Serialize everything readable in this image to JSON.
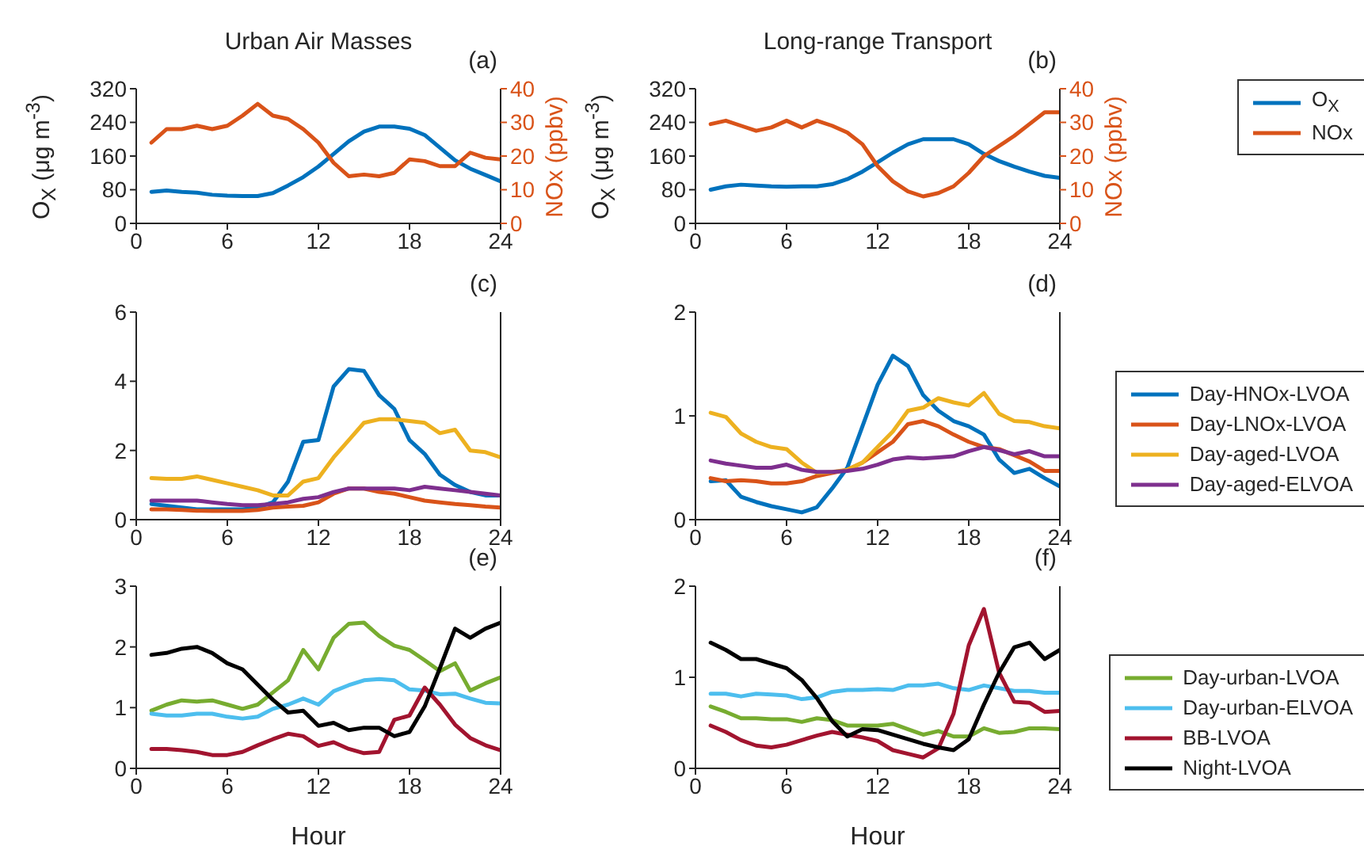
{
  "chart_data": [
    {
      "type": "line",
      "title": "Urban Air Masses",
      "annotations": [
        "(a)"
      ],
      "ylabel": "O$_{X}$ (μg m$^{-3}$)",
      "y2label": "NOx (ppbv)",
      "x": [
        1,
        2,
        3,
        4,
        5,
        6,
        7,
        8,
        9,
        10,
        11,
        12,
        13,
        14,
        15,
        16,
        17,
        18,
        19,
        20,
        21,
        22,
        23,
        24
      ],
      "xlim": [
        0,
        24
      ],
      "xticks": [
        0,
        6,
        12,
        18,
        24
      ],
      "ylim": [
        0,
        320
      ],
      "yticks": [
        0,
        80,
        160,
        240,
        320
      ],
      "y2lim": [
        0,
        40
      ],
      "y2ticks": [
        0,
        10,
        20,
        30,
        40
      ],
      "series": [
        {
          "color": "#0072bd",
          "values": [
            75,
            78,
            75,
            73,
            68,
            66,
            65,
            65,
            72,
            90,
            110,
            135,
            165,
            195,
            218,
            230,
            230,
            225,
            210,
            180,
            150,
            130,
            115,
            100
          ]
        },
        {
          "color": "#d95319",
          "axis": "y2",
          "values": [
            24,
            28,
            28,
            29,
            28,
            29,
            32,
            35.5,
            32,
            31,
            28,
            24,
            18,
            14,
            14.5,
            14,
            15,
            19,
            18.5,
            17,
            17,
            21,
            19.5,
            19
          ]
        }
      ]
    },
    {
      "type": "line",
      "title": "Long-range Transport",
      "annotations": [
        "(b)"
      ],
      "ylabel": "O$_{X}$ (μg m$^{-3}$)",
      "y2label": "NOx (ppbv)",
      "legend": "right",
      "x": [
        1,
        2,
        3,
        4,
        5,
        6,
        7,
        8,
        9,
        10,
        11,
        12,
        13,
        14,
        15,
        16,
        17,
        18,
        19,
        20,
        21,
        22,
        23,
        24
      ],
      "xlim": [
        0,
        24
      ],
      "xticks": [
        0,
        6,
        12,
        18,
        24
      ],
      "ylim": [
        0,
        320
      ],
      "yticks": [
        0,
        80,
        160,
        240,
        320
      ],
      "y2lim": [
        0,
        40
      ],
      "y2ticks": [
        0,
        10,
        20,
        30,
        40
      ],
      "series": [
        {
          "name": "O$_{X}$",
          "color": "#0072bd",
          "values": [
            80,
            88,
            92,
            90,
            88,
            87,
            88,
            88,
            93,
            105,
            123,
            145,
            168,
            188,
            200,
            200,
            200,
            188,
            165,
            148,
            135,
            123,
            113,
            108
          ]
        },
        {
          "name": "NOx",
          "color": "#d95319",
          "axis": "y2",
          "values": [
            29.5,
            30.5,
            29,
            27.5,
            28.5,
            30.5,
            28.5,
            30.5,
            29,
            27,
            23.5,
            17,
            12.5,
            9.5,
            8,
            9,
            11,
            15,
            20,
            23,
            26,
            29.5,
            33,
            33
          ]
        }
      ]
    },
    {
      "type": "line",
      "annotations": [
        "(c)"
      ],
      "x": [
        1,
        2,
        3,
        4,
        5,
        6,
        7,
        8,
        9,
        10,
        11,
        12,
        13,
        14,
        15,
        16,
        17,
        18,
        19,
        20,
        21,
        22,
        23,
        24
      ],
      "xlim": [
        0,
        24
      ],
      "xticks": [
        0,
        6,
        12,
        18,
        24
      ],
      "ylim": [
        0,
        6
      ],
      "yticks": [
        0,
        2,
        4,
        6
      ],
      "series": [
        {
          "color": "#0072bd",
          "values": [
            0.45,
            0.4,
            0.35,
            0.3,
            0.3,
            0.3,
            0.3,
            0.35,
            0.5,
            1.1,
            2.25,
            2.3,
            3.85,
            4.35,
            4.3,
            3.6,
            3.2,
            2.3,
            1.9,
            1.3,
            1.0,
            0.8,
            0.7,
            0.7
          ]
        },
        {
          "color": "#d95319",
          "values": [
            0.3,
            0.3,
            0.28,
            0.26,
            0.25,
            0.25,
            0.25,
            0.28,
            0.35,
            0.38,
            0.4,
            0.5,
            0.75,
            0.9,
            0.9,
            0.8,
            0.75,
            0.65,
            0.55,
            0.5,
            0.45,
            0.42,
            0.38,
            0.35
          ]
        },
        {
          "color": "#edb120",
          "values": [
            1.2,
            1.18,
            1.18,
            1.25,
            1.15,
            1.05,
            0.95,
            0.85,
            0.7,
            0.7,
            1.1,
            1.2,
            1.8,
            2.3,
            2.8,
            2.9,
            2.9,
            2.85,
            2.8,
            2.5,
            2.6,
            2.0,
            1.95,
            1.8
          ]
        },
        {
          "color": "#7e2f8e",
          "values": [
            0.55,
            0.55,
            0.55,
            0.55,
            0.5,
            0.45,
            0.42,
            0.42,
            0.45,
            0.5,
            0.6,
            0.65,
            0.8,
            0.9,
            0.9,
            0.9,
            0.9,
            0.85,
            0.95,
            0.9,
            0.85,
            0.8,
            0.75,
            0.7
          ]
        }
      ]
    },
    {
      "type": "line",
      "annotations": [
        "(d)"
      ],
      "legend": "right",
      "x": [
        1,
        2,
        3,
        4,
        5,
        6,
        7,
        8,
        9,
        10,
        11,
        12,
        13,
        14,
        15,
        16,
        17,
        18,
        19,
        20,
        21,
        22,
        23,
        24
      ],
      "xlim": [
        0,
        24
      ],
      "xticks": [
        0,
        6,
        12,
        18,
        24
      ],
      "ylim": [
        0,
        2
      ],
      "yticks": [
        0,
        1,
        2
      ],
      "series": [
        {
          "name": "Day-HNOx-LVOA",
          "color": "#0072bd",
          "values": [
            0.37,
            0.38,
            0.22,
            0.17,
            0.13,
            0.1,
            0.07,
            0.12,
            0.3,
            0.5,
            0.9,
            1.3,
            1.58,
            1.48,
            1.2,
            1.05,
            0.95,
            0.9,
            0.82,
            0.58,
            0.45,
            0.49,
            0.4,
            0.32
          ]
        },
        {
          "name": "Day-LNOx-LVOA",
          "color": "#d95319",
          "values": [
            0.4,
            0.37,
            0.38,
            0.37,
            0.35,
            0.35,
            0.37,
            0.42,
            0.45,
            0.48,
            0.55,
            0.65,
            0.75,
            0.92,
            0.95,
            0.9,
            0.82,
            0.75,
            0.7,
            0.68,
            0.62,
            0.56,
            0.47,
            0.47
          ]
        },
        {
          "name": "Day-aged-LVOA",
          "color": "#edb120",
          "values": [
            1.03,
            0.99,
            0.83,
            0.75,
            0.7,
            0.68,
            0.55,
            0.45,
            0.46,
            0.48,
            0.55,
            0.7,
            0.85,
            1.05,
            1.08,
            1.17,
            1.13,
            1.1,
            1.22,
            1.02,
            0.95,
            0.94,
            0.9,
            0.88
          ]
        },
        {
          "name": "Day-aged-ELVOA",
          "color": "#7e2f8e",
          "values": [
            0.57,
            0.54,
            0.52,
            0.5,
            0.5,
            0.53,
            0.48,
            0.46,
            0.46,
            0.47,
            0.49,
            0.53,
            0.58,
            0.6,
            0.59,
            0.6,
            0.61,
            0.66,
            0.7,
            0.67,
            0.63,
            0.66,
            0.61,
            0.61
          ]
        }
      ]
    },
    {
      "type": "line",
      "annotations": [
        "(e)"
      ],
      "xlabel": "Hour",
      "x": [
        1,
        2,
        3,
        4,
        5,
        6,
        7,
        8,
        9,
        10,
        11,
        12,
        13,
        14,
        15,
        16,
        17,
        18,
        19,
        20,
        21,
        22,
        23,
        24
      ],
      "xlim": [
        0,
        24
      ],
      "xticks": [
        0,
        6,
        12,
        18,
        24
      ],
      "ylim": [
        0,
        3
      ],
      "yticks": [
        0,
        1,
        2,
        3
      ],
      "series": [
        {
          "color": "#77ac30",
          "values": [
            0.95,
            1.05,
            1.12,
            1.1,
            1.12,
            1.05,
            0.98,
            1.05,
            1.25,
            1.45,
            1.95,
            1.63,
            2.15,
            2.38,
            2.4,
            2.18,
            2.02,
            1.95,
            1.78,
            1.6,
            1.73,
            1.28,
            1.4,
            1.5
          ]
        },
        {
          "color": "#4dbeee",
          "values": [
            0.9,
            0.87,
            0.87,
            0.9,
            0.9,
            0.85,
            0.82,
            0.85,
            0.98,
            1.05,
            1.15,
            1.05,
            1.27,
            1.37,
            1.45,
            1.47,
            1.45,
            1.3,
            1.28,
            1.22,
            1.23,
            1.15,
            1.08,
            1.07
          ]
        },
        {
          "color": "#a2142f",
          "values": [
            0.32,
            0.32,
            0.3,
            0.27,
            0.22,
            0.22,
            0.27,
            0.38,
            0.48,
            0.57,
            0.53,
            0.37,
            0.43,
            0.32,
            0.25,
            0.27,
            0.8,
            0.87,
            1.33,
            1.05,
            0.72,
            0.5,
            0.38,
            0.3
          ]
        },
        {
          "color": "#000000",
          "values": [
            1.87,
            1.9,
            1.97,
            2.0,
            1.9,
            1.73,
            1.63,
            1.38,
            1.13,
            0.92,
            0.95,
            0.7,
            0.75,
            0.63,
            0.67,
            0.67,
            0.53,
            0.6,
            1.02,
            1.65,
            2.3,
            2.15,
            2.3,
            2.4
          ]
        }
      ]
    },
    {
      "type": "line",
      "annotations": [
        "(f)"
      ],
      "xlabel": "Hour",
      "legend": "right",
      "x": [
        1,
        2,
        3,
        4,
        5,
        6,
        7,
        8,
        9,
        10,
        11,
        12,
        13,
        14,
        15,
        16,
        17,
        18,
        19,
        20,
        21,
        22,
        23,
        24
      ],
      "xlim": [
        0,
        24
      ],
      "xticks": [
        0,
        6,
        12,
        18,
        24
      ],
      "ylim": [
        0,
        2
      ],
      "yticks": [
        0,
        1,
        2
      ],
      "series": [
        {
          "name": "Day-urban-LVOA",
          "color": "#77ac30",
          "values": [
            0.68,
            0.62,
            0.55,
            0.55,
            0.54,
            0.54,
            0.51,
            0.55,
            0.53,
            0.47,
            0.47,
            0.47,
            0.49,
            0.43,
            0.37,
            0.41,
            0.35,
            0.35,
            0.44,
            0.39,
            0.4,
            0.44,
            0.44,
            0.43
          ]
        },
        {
          "name": "Day-urban-ELVOA",
          "color": "#4dbeee",
          "values": [
            0.82,
            0.82,
            0.79,
            0.82,
            0.81,
            0.8,
            0.76,
            0.78,
            0.84,
            0.86,
            0.86,
            0.87,
            0.86,
            0.91,
            0.91,
            0.93,
            0.88,
            0.86,
            0.91,
            0.88,
            0.85,
            0.85,
            0.83,
            0.83
          ]
        },
        {
          "name": "BB-LVOA",
          "color": "#a2142f",
          "values": [
            0.47,
            0.4,
            0.31,
            0.25,
            0.23,
            0.26,
            0.31,
            0.36,
            0.4,
            0.37,
            0.34,
            0.3,
            0.2,
            0.16,
            0.12,
            0.22,
            0.6,
            1.35,
            1.75,
            1.05,
            0.73,
            0.72,
            0.62,
            0.63
          ]
        },
        {
          "name": "Night-LVOA",
          "color": "#000000",
          "values": [
            1.38,
            1.3,
            1.2,
            1.2,
            1.15,
            1.1,
            0.97,
            0.77,
            0.52,
            0.35,
            0.43,
            0.42,
            0.37,
            0.32,
            0.27,
            0.23,
            0.2,
            0.32,
            0.7,
            1.05,
            1.33,
            1.38,
            1.2,
            1.3
          ]
        }
      ]
    }
  ]
}
